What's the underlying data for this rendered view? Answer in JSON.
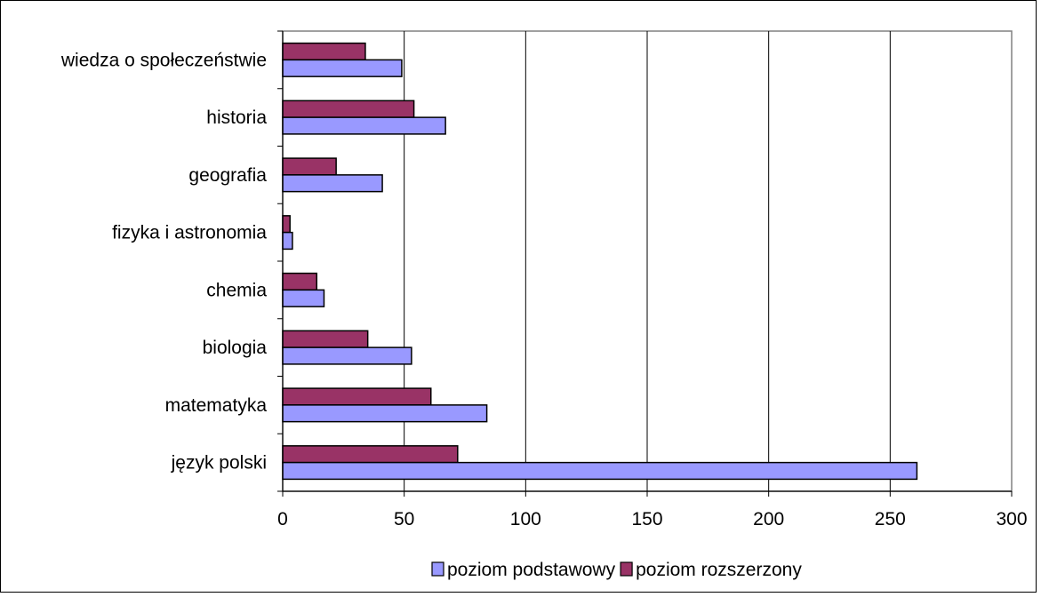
{
  "chart_data": {
    "type": "bar",
    "orientation": "horizontal",
    "categories": [
      "język polski",
      "matematyka",
      "biologia",
      "chemia",
      "fizyka i astronomia",
      "geografia",
      "historia",
      "wiedza o społeczeństwie"
    ],
    "series": [
      {
        "name": "poziom podstawowy",
        "color": "#9999ff",
        "values": [
          261,
          84,
          53,
          17,
          4,
          41,
          67,
          49
        ]
      },
      {
        "name": "poziom rozszerzony",
        "color": "#993366",
        "values": [
          72,
          61,
          35,
          14,
          3,
          22,
          54,
          34
        ]
      }
    ],
    "xlim": [
      0,
      300
    ],
    "x_ticks": [
      "0",
      "50",
      "100",
      "150",
      "200",
      "250",
      "300"
    ],
    "grid": "vertical major gridlines",
    "legend": "bottom",
    "plot_border_color": "#808080",
    "bar_outline_color": "#000000"
  }
}
